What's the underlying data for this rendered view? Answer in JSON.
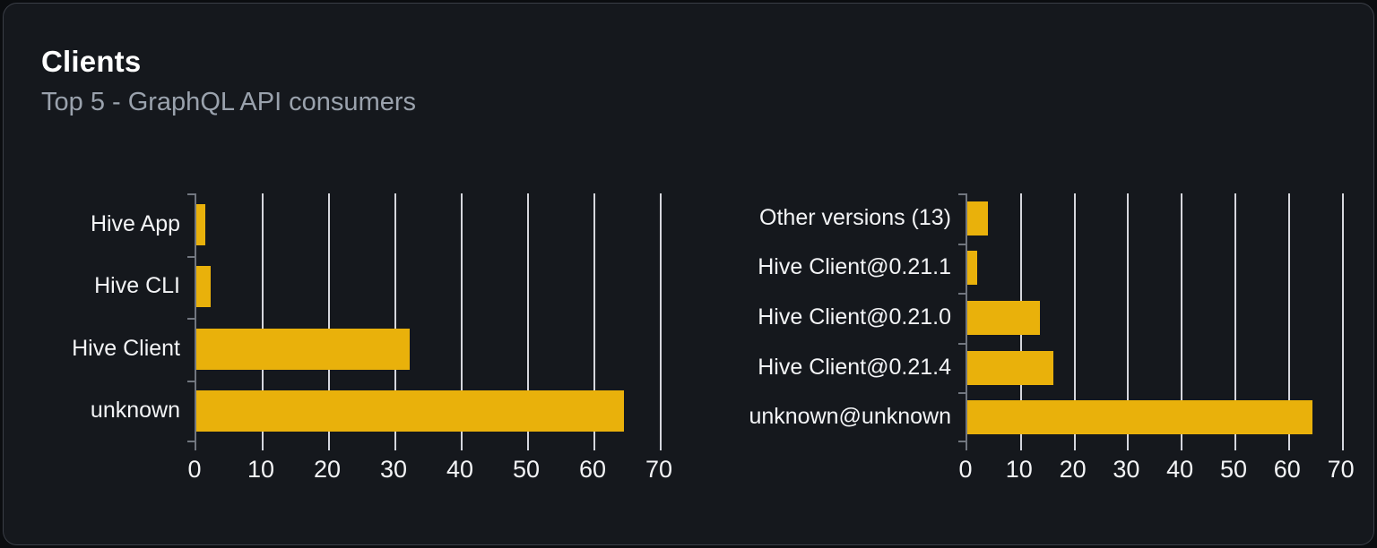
{
  "page": {
    "title": "Clients",
    "subtitle": "Top 5 - GraphQL API consumers"
  },
  "colors": {
    "page_bg": "#0b0d10",
    "card_bg": "#15181d",
    "card_border": "#3a3e46",
    "title": "#ffffff",
    "subtitle": "#9aa2ad",
    "bar": "#e9b10b",
    "gridline": "#e7e8ee",
    "axis": "#71767f",
    "label": "#f3f4f6"
  },
  "chart_data": [
    {
      "type": "bar",
      "orientation": "horizontal",
      "name": "clients-top5",
      "categories": [
        "Hive App",
        "Hive CLI",
        "Hive Client",
        "unknown"
      ],
      "values": [
        1.4,
        2.1,
        32.1,
        64.4
      ],
      "xticks": [
        0,
        10,
        20,
        30,
        40,
        50,
        60,
        70
      ],
      "xlim": [
        0,
        71
      ],
      "grid": "vertical",
      "legend": "none",
      "bar_color": "#e9b10b"
    },
    {
      "type": "bar",
      "orientation": "horizontal",
      "name": "client-versions-top5",
      "categories": [
        "Other versions (13)",
        "Hive Client@0.21.1",
        "Hive Client@0.21.0",
        "Hive Client@0.21.4",
        "unknown@unknown"
      ],
      "values": [
        3.8,
        1.8,
        13.6,
        16.1,
        64.3
      ],
      "xticks": [
        0,
        10,
        20,
        30,
        40,
        50,
        60,
        70
      ],
      "xlim": [
        0,
        71
      ],
      "grid": "vertical",
      "legend": "none",
      "bar_color": "#e9b10b"
    }
  ]
}
